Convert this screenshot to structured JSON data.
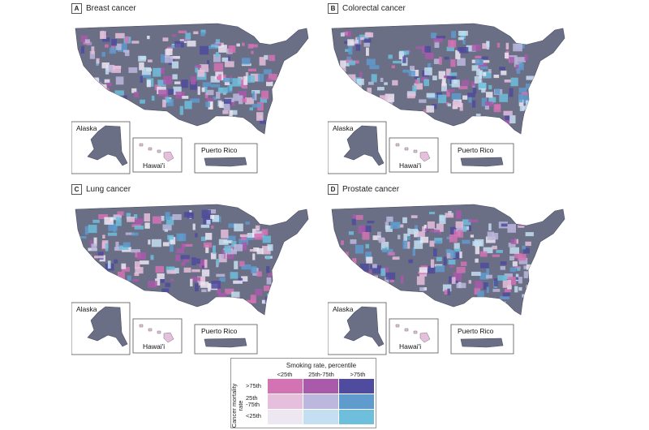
{
  "panels": [
    {
      "letter": "A",
      "title": "Breast cancer"
    },
    {
      "letter": "B",
      "title": "Colorectal cancer"
    },
    {
      "letter": "C",
      "title": "Lung cancer"
    },
    {
      "letter": "D",
      "title": "Prostate cancer"
    }
  ],
  "insets": {
    "alaska": "Alaska",
    "hawaii": "Hawai'i",
    "puerto_rico": "Puerto Rico"
  },
  "legend": {
    "title": "Smoking rate, percentile",
    "columns": [
      "<25th",
      "25th-75th",
      ">75th"
    ],
    "axis_label": "Cancer mortality rate",
    "rows": [
      ">75th",
      "25th -75th",
      "<25th"
    ],
    "colors": [
      [
        "#d473b4",
        "#a95aab",
        "#4f4b9e"
      ],
      [
        "#e6bfdc",
        "#bcb8dd",
        "#5f9bcc"
      ],
      [
        "#ede7f2",
        "#c4dff1",
        "#6dbfdc"
      ]
    ],
    "map_base_color": "#6b6f86"
  }
}
